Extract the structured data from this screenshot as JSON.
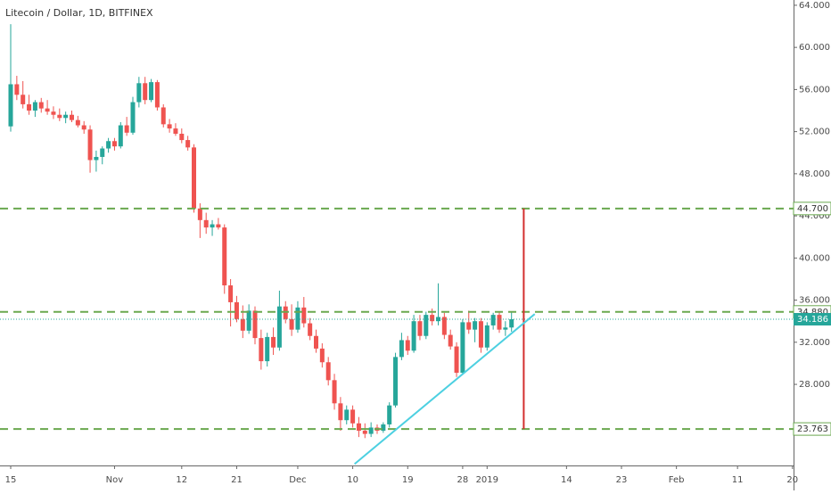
{
  "chart_data": {
    "type": "candlestick",
    "title": "Litecoin / Dollar, 1D, BITFINEX",
    "categories": [
      "15",
      null,
      null,
      null,
      null,
      null,
      null,
      null,
      null,
      null,
      null,
      null,
      null,
      null,
      null,
      null,
      null,
      "Nov",
      null,
      null,
      null,
      null,
      null,
      null,
      null,
      null,
      null,
      null,
      "12",
      null,
      null,
      null,
      null,
      null,
      null,
      null,
      null,
      "21",
      null,
      null,
      null,
      null,
      null,
      null,
      null,
      null,
      null,
      "Dec",
      null,
      null,
      null,
      null,
      null,
      null,
      null,
      null,
      "10",
      null,
      null,
      null,
      null,
      null,
      null,
      null,
      null,
      "19",
      null,
      null,
      null,
      null,
      null,
      null,
      null,
      null,
      "28",
      null,
      null,
      null,
      "2019",
      null,
      null,
      null,
      null,
      null,
      null,
      null,
      null,
      null,
      null,
      null,
      null,
      "14",
      null,
      null,
      null,
      null,
      null,
      null,
      null,
      null,
      "23",
      null,
      null,
      null,
      null,
      null,
      null,
      null,
      null,
      "Feb",
      null,
      null,
      null,
      null,
      null,
      null,
      null,
      null,
      null,
      "11",
      null,
      null,
      null,
      null,
      null,
      null,
      null,
      null,
      "20"
    ],
    "open": [
      52.5,
      56.5,
      55.5,
      54.6,
      54.0,
      54.8,
      54.2,
      53.9,
      53.6,
      53.3,
      53.6,
      53.1,
      52.6,
      52.2,
      49.3,
      49.6,
      50.4,
      51.1,
      50.6,
      52.6,
      51.9,
      54.8,
      56.6,
      55.0,
      56.7,
      54.3,
      52.7,
      52.3,
      51.8,
      51.2,
      50.5,
      44.7,
      43.6,
      42.9,
      43.2,
      42.9,
      37.4,
      35.8,
      34.2,
      33.1,
      35.0,
      32.4,
      30.2,
      32.5,
      31.5,
      35.4,
      34.2,
      33.2,
      35.3,
      33.8,
      32.6,
      31.4,
      30.1,
      28.4,
      26.2,
      24.6,
      25.6,
      24.3,
      23.6,
      23.3,
      23.9,
      23.6,
      24.2,
      26.0,
      30.6,
      32.2,
      31.2,
      34.0,
      32.6,
      34.6,
      34.0,
      34.4,
      32.7,
      31.6,
      29.1,
      33.9,
      33.2,
      34.0,
      31.5,
      33.6,
      34.6,
      33.2,
      33.4,
      null,
      null,
      null,
      null,
      null,
      null,
      null,
      null,
      null,
      null,
      null,
      null,
      null,
      null,
      null,
      null,
      null,
      null,
      null,
      null,
      null,
      null,
      null,
      null,
      null,
      null,
      null,
      null,
      null,
      null,
      null,
      null,
      null,
      null,
      null,
      null,
      null,
      null,
      null,
      null,
      null,
      null,
      null,
      null,
      null,
      null
    ],
    "high": [
      62.2,
      57.3,
      56.8,
      55.5,
      55.0,
      55.2,
      55.0,
      54.4,
      54.2,
      53.9,
      54.0,
      53.5,
      53.0,
      52.6,
      50.2,
      50.6,
      51.4,
      51.4,
      52.9,
      53.4,
      55.3,
      57.2,
      57.2,
      57.0,
      56.9,
      54.6,
      53.2,
      52.8,
      52.3,
      51.6,
      50.8,
      45.2,
      44.3,
      43.6,
      43.8,
      43.2,
      38.0,
      36.4,
      35.5,
      35.6,
      35.4,
      33.2,
      32.9,
      33.4,
      36.9,
      35.9,
      35.6,
      35.9,
      36.3,
      34.3,
      33.2,
      31.9,
      30.6,
      29.0,
      26.8,
      26.0,
      26.0,
      24.9,
      24.3,
      24.4,
      24.2,
      24.4,
      26.3,
      31.0,
      32.9,
      32.6,
      34.6,
      34.6,
      34.9,
      35.2,
      37.6,
      34.8,
      33.2,
      32.0,
      34.2,
      35.0,
      34.3,
      34.3,
      33.9,
      34.8,
      34.9,
      34.0,
      34.9,
      null,
      null,
      null,
      null,
      null,
      null,
      null,
      null,
      null,
      null,
      null,
      null,
      null,
      null,
      null,
      null,
      null,
      null,
      null,
      null,
      null,
      null,
      null,
      null,
      null,
      null,
      null,
      null,
      null,
      null,
      null,
      null,
      null,
      null,
      null,
      null,
      null,
      null,
      null,
      null,
      null,
      null,
      null,
      null,
      null,
      null
    ],
    "low": [
      52.0,
      55.0,
      54.2,
      53.6,
      53.4,
      53.8,
      53.6,
      53.2,
      53.0,
      52.8,
      52.9,
      52.4,
      51.8,
      48.1,
      48.2,
      48.9,
      50.0,
      50.2,
      50.4,
      51.6,
      51.7,
      54.3,
      54.6,
      54.8,
      54.0,
      52.4,
      51.9,
      51.6,
      50.9,
      50.2,
      44.3,
      41.9,
      42.3,
      42.1,
      42.7,
      36.6,
      33.5,
      33.9,
      32.4,
      32.8,
      31.8,
      29.4,
      29.7,
      30.8,
      31.2,
      33.8,
      32.6,
      32.9,
      33.4,
      32.2,
      31.0,
      29.6,
      27.9,
      25.6,
      23.6,
      24.2,
      23.9,
      23.0,
      22.9,
      23.0,
      23.3,
      23.4,
      23.9,
      25.8,
      30.3,
      30.8,
      31.0,
      32.2,
      32.3,
      33.6,
      33.6,
      32.3,
      31.3,
      28.7,
      28.9,
      32.8,
      32.0,
      31.0,
      31.2,
      33.2,
      32.9,
      32.6,
      33.0,
      null,
      null,
      null,
      null,
      null,
      null,
      null,
      null,
      null,
      null,
      null,
      null,
      null,
      null,
      null,
      null,
      null,
      null,
      null,
      null,
      null,
      null,
      null,
      null,
      null,
      null,
      null,
      null,
      null,
      null,
      null,
      null,
      null,
      null,
      null,
      null,
      null,
      null,
      null,
      null,
      null,
      null,
      null,
      null,
      null,
      null
    ],
    "close": [
      56.5,
      55.5,
      54.6,
      54.0,
      54.8,
      54.2,
      53.9,
      53.6,
      53.3,
      53.6,
      53.1,
      52.6,
      52.2,
      49.3,
      49.6,
      50.4,
      51.1,
      50.6,
      52.6,
      51.9,
      54.8,
      56.6,
      55.0,
      56.7,
      54.3,
      52.7,
      52.3,
      51.8,
      51.2,
      50.5,
      44.7,
      43.6,
      42.9,
      43.2,
      42.9,
      37.4,
      35.8,
      34.2,
      33.1,
      35.0,
      32.4,
      30.2,
      32.5,
      31.5,
      35.4,
      34.2,
      33.2,
      35.3,
      33.8,
      32.6,
      31.4,
      30.1,
      28.4,
      26.2,
      24.6,
      25.6,
      24.3,
      23.6,
      23.3,
      23.9,
      23.6,
      24.2,
      26.0,
      30.6,
      32.2,
      31.2,
      34.0,
      32.6,
      34.6,
      34.0,
      34.4,
      32.7,
      31.6,
      29.1,
      33.9,
      33.2,
      34.0,
      31.5,
      33.6,
      34.6,
      33.2,
      33.4,
      34.186,
      null,
      null,
      null,
      null,
      null,
      null,
      null,
      null,
      null,
      null,
      null,
      null,
      null,
      null,
      null,
      null,
      null,
      null,
      null,
      null,
      null,
      null,
      null,
      null,
      null,
      null,
      null,
      null,
      null,
      null,
      null,
      null,
      null,
      null,
      null,
      null,
      null,
      null,
      null,
      null,
      null,
      null,
      null,
      null,
      null,
      null
    ],
    "up_color": "#26a69a",
    "down_color": "#ef5350",
    "ylim": [
      20.3,
      64.5
    ],
    "yticks": [
      {
        "value": 28,
        "label": "28.000"
      },
      {
        "value": 32,
        "label": "32.000"
      },
      {
        "value": 36,
        "label": "36.000"
      },
      {
        "value": 40,
        "label": "40.000"
      },
      {
        "value": 44,
        "label": "44.000"
      },
      {
        "value": 48,
        "label": "48.000"
      },
      {
        "value": 52,
        "label": "52.000"
      },
      {
        "value": 56,
        "label": "56.000"
      },
      {
        "value": 60,
        "label": "60.000"
      },
      {
        "value": 64,
        "label": "64.000"
      }
    ],
    "levels": [
      {
        "value": 44.7,
        "label": "44.700"
      },
      {
        "value": 34.88,
        "label": "34.880"
      },
      {
        "value": 23.763,
        "label": "23.763"
      }
    ],
    "level_color": "#6aa84f",
    "measure": {
      "x": 84,
      "from": 44.7,
      "to": 23.763,
      "color": "#d32f2f"
    },
    "trendline": {
      "x": [
        56.3,
        85.8
      ],
      "y": [
        20.44,
        34.68
      ],
      "color": "#4dd0e1"
    }
  }
}
